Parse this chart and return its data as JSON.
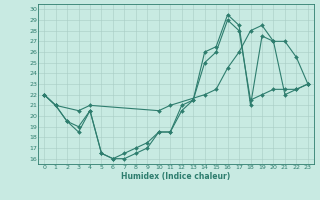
{
  "xlabel": "Humidex (Indice chaleur)",
  "xlim": [
    -0.5,
    23.5
  ],
  "ylim": [
    15.5,
    30.5
  ],
  "xticks": [
    0,
    1,
    2,
    3,
    4,
    5,
    6,
    7,
    8,
    9,
    10,
    11,
    12,
    13,
    14,
    15,
    16,
    17,
    18,
    19,
    20,
    21,
    22,
    23
  ],
  "yticks": [
    16,
    17,
    18,
    19,
    20,
    21,
    22,
    23,
    24,
    25,
    26,
    27,
    28,
    29,
    30
  ],
  "bg_color": "#c8eae2",
  "line_color": "#2e7d6e",
  "grid_color": "#a8ccc5",
  "curve1_x": [
    0,
    1,
    2,
    3,
    4,
    5,
    6,
    7,
    8,
    9,
    10,
    11,
    12,
    13,
    14,
    15,
    16,
    17,
    18,
    19,
    20,
    21,
    22,
    23
  ],
  "curve1_y": [
    22,
    21,
    19.5,
    19,
    20.5,
    16.5,
    16.0,
    16.0,
    16.5,
    17.0,
    18.5,
    18.5,
    20.5,
    21.5,
    26.0,
    26.5,
    29.5,
    28.5,
    21.0,
    27.5,
    27.0,
    27.0,
    25.5,
    23.0
  ],
  "curve2_x": [
    0,
    1,
    3,
    4,
    10,
    11,
    14,
    15,
    16,
    17,
    18,
    19,
    20,
    21,
    22,
    23
  ],
  "curve2_y": [
    22,
    21,
    20.5,
    21.0,
    20.5,
    21.0,
    22.0,
    22.5,
    24.5,
    26.0,
    28.0,
    28.5,
    27.0,
    22.0,
    22.5,
    23.0
  ],
  "curve3_x": [
    0,
    1,
    2,
    3,
    4,
    5,
    6,
    7,
    8,
    9,
    10,
    11,
    12,
    13,
    14,
    15,
    16,
    17,
    18,
    19,
    20,
    21,
    22,
    23
  ],
  "curve3_y": [
    22,
    21,
    19.5,
    18.5,
    20.5,
    16.5,
    16.0,
    16.5,
    17.0,
    17.5,
    18.5,
    18.5,
    21.0,
    21.5,
    25.0,
    26.0,
    29.0,
    28.0,
    21.5,
    22.0,
    22.5,
    22.5,
    22.5,
    23.0
  ]
}
